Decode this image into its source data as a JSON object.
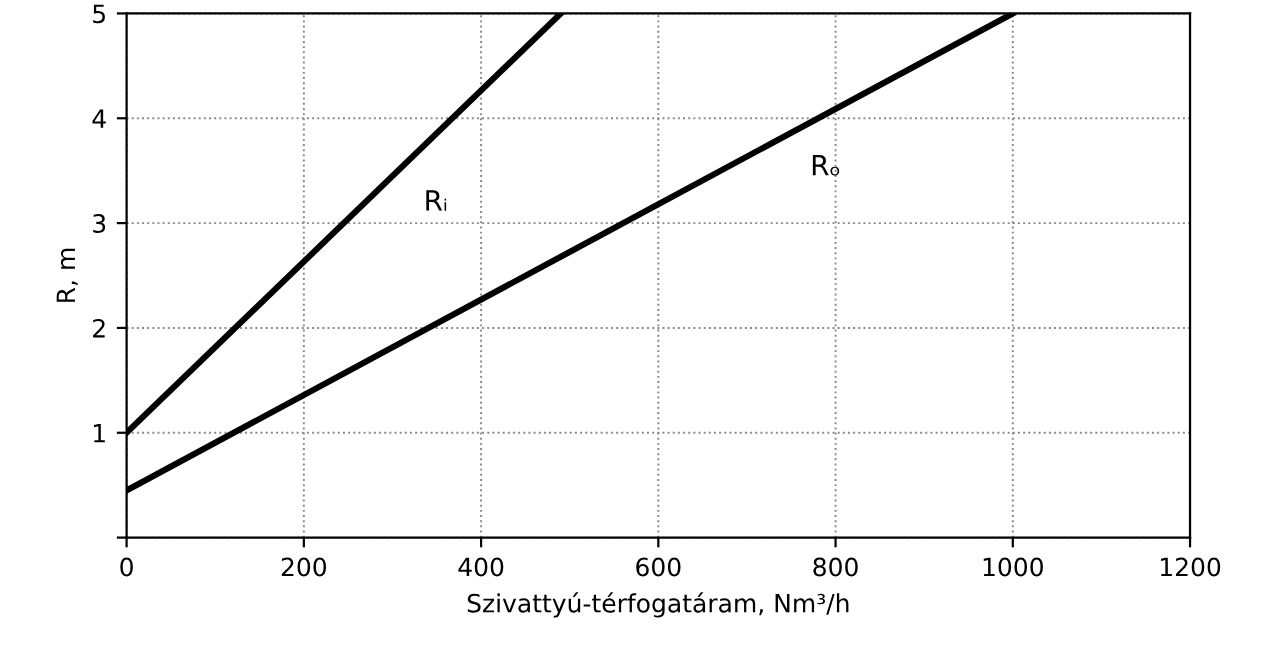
{
  "chart_data": {
    "type": "line",
    "xlabel": "Szivattyú-térfogatáram, Nm³/h",
    "ylabel": "R, m",
    "series": [
      {
        "name": "Rᵢ",
        "color": "#000000",
        "x": [
          0,
          490
        ],
        "values": [
          1,
          5
        ]
      },
      {
        "name": "Rₒ",
        "color": "#000000",
        "x": [
          0,
          1000
        ],
        "values": [
          0.45,
          5
        ]
      }
    ],
    "xlim": [
      0,
      1200
    ],
    "xticks": [
      0,
      200,
      400,
      600,
      800,
      1000,
      1200
    ],
    "ylim": [
      0,
      5
    ],
    "yticks": [
      {
        "value": 0,
        "label": null
      },
      1,
      2,
      3,
      4,
      5
    ],
    "grid": true,
    "legend": false,
    "marker": "none",
    "line_style": "solid"
  }
}
